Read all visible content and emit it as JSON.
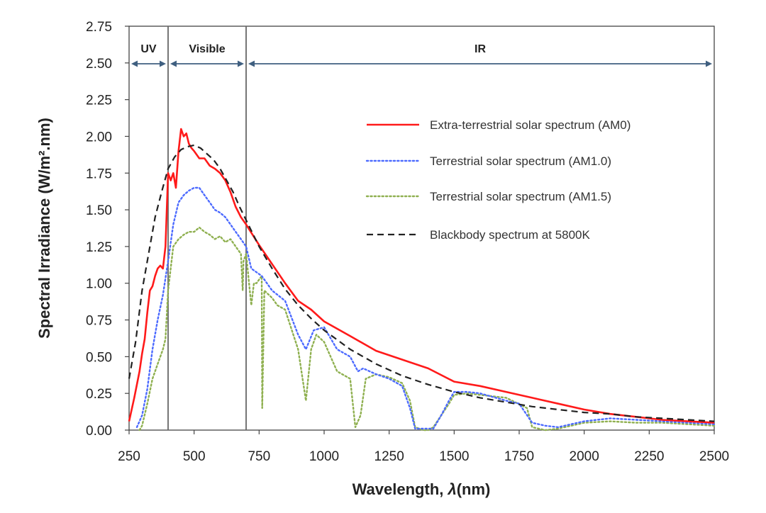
{
  "chart_data": {
    "type": "line",
    "title": "",
    "xlabel": "Wavelength, ",
    "xlabel_symbol": "λ",
    "xlabel_unit": "(nm)",
    "ylabel": "Spectral Irradiance (W/m².nm)",
    "xlim": [
      250,
      2500
    ],
    "ylim": [
      0,
      2.75
    ],
    "xticks": [
      250,
      500,
      750,
      1000,
      1250,
      1500,
      1750,
      2000,
      2250,
      2500
    ],
    "yticks": [
      "0.00",
      "0.25",
      "0.50",
      "0.75",
      "1.00",
      "1.25",
      "1.50",
      "1.75",
      "2.00",
      "2.25",
      "2.50",
      "2.75"
    ],
    "grid": false,
    "legend_position": "upper-right",
    "regions": [
      {
        "label": "UV",
        "start": 250,
        "end": 400
      },
      {
        "label": "Visible",
        "start": 400,
        "end": 700
      },
      {
        "label": "IR",
        "start": 700,
        "end": 2500
      }
    ],
    "series": [
      {
        "name": "Extra-terrestrial solar spectrum (AM0)",
        "color": "#ff1a1a",
        "style": "solid",
        "x": [
          250,
          270,
          290,
          300,
          310,
          320,
          330,
          340,
          350,
          360,
          370,
          380,
          390,
          400,
          410,
          420,
          430,
          440,
          450,
          460,
          470,
          480,
          490,
          500,
          520,
          540,
          560,
          580,
          600,
          620,
          640,
          660,
          680,
          700,
          750,
          800,
          850,
          900,
          950,
          1000,
          1100,
          1200,
          1300,
          1400,
          1500,
          1600,
          1700,
          1800,
          1900,
          2000,
          2100,
          2200,
          2300,
          2400,
          2500
        ],
        "y": [
          0.06,
          0.22,
          0.4,
          0.52,
          0.62,
          0.8,
          0.95,
          0.98,
          1.05,
          1.1,
          1.12,
          1.1,
          1.25,
          1.75,
          1.7,
          1.75,
          1.65,
          1.9,
          2.05,
          2.0,
          2.02,
          1.95,
          1.92,
          1.9,
          1.85,
          1.85,
          1.8,
          1.78,
          1.75,
          1.7,
          1.62,
          1.52,
          1.45,
          1.4,
          1.26,
          1.13,
          1.0,
          0.88,
          0.82,
          0.74,
          0.64,
          0.54,
          0.48,
          0.42,
          0.33,
          0.3,
          0.26,
          0.22,
          0.18,
          0.14,
          0.11,
          0.09,
          0.07,
          0.06,
          0.05
        ]
      },
      {
        "name": "Terrestrial solar spectrum (AM1.0)",
        "color": "#4d6bff",
        "style": "dotted",
        "x": [
          280,
          300,
          320,
          340,
          360,
          380,
          400,
          420,
          440,
          460,
          480,
          500,
          520,
          540,
          560,
          580,
          600,
          620,
          640,
          660,
          680,
          700,
          720,
          760,
          800,
          850,
          900,
          930,
          960,
          1000,
          1050,
          1100,
          1130,
          1150,
          1200,
          1250,
          1300,
          1330,
          1350,
          1380,
          1420,
          1450,
          1480,
          1500,
          1550,
          1600,
          1700,
          1750,
          1800,
          1850,
          1900,
          1950,
          2000,
          2100,
          2200,
          2300,
          2400,
          2500
        ],
        "y": [
          0.02,
          0.1,
          0.28,
          0.55,
          0.75,
          0.92,
          1.15,
          1.4,
          1.55,
          1.6,
          1.63,
          1.65,
          1.65,
          1.6,
          1.55,
          1.5,
          1.48,
          1.45,
          1.4,
          1.35,
          1.3,
          1.25,
          1.1,
          1.05,
          0.95,
          0.88,
          0.65,
          0.55,
          0.68,
          0.7,
          0.55,
          0.5,
          0.4,
          0.42,
          0.38,
          0.35,
          0.3,
          0.15,
          0.01,
          0.01,
          0.01,
          0.1,
          0.2,
          0.26,
          0.26,
          0.25,
          0.2,
          0.18,
          0.05,
          0.03,
          0.02,
          0.04,
          0.06,
          0.08,
          0.07,
          0.06,
          0.05,
          0.04
        ]
      },
      {
        "name": "Terrestrial solar spectrum (AM1.5)",
        "color": "#8fb050",
        "style": "dotted",
        "x": [
          290,
          300,
          320,
          340,
          360,
          380,
          390,
          400,
          420,
          440,
          460,
          480,
          500,
          520,
          540,
          560,
          580,
          600,
          620,
          640,
          660,
          680,
          687,
          690,
          700,
          720,
          730,
          740,
          760,
          762,
          770,
          800,
          820,
          850,
          900,
          930,
          950,
          970,
          1000,
          1050,
          1100,
          1120,
          1140,
          1160,
          1200,
          1250,
          1300,
          1330,
          1350,
          1380,
          1400,
          1420,
          1450,
          1480,
          1500,
          1550,
          1600,
          1700,
          1780,
          1800,
          1850,
          1900,
          1950,
          2000,
          2100,
          2200,
          2300,
          2400,
          2500
        ],
        "y": [
          0.0,
          0.03,
          0.18,
          0.35,
          0.45,
          0.55,
          0.62,
          0.95,
          1.25,
          1.3,
          1.33,
          1.35,
          1.35,
          1.38,
          1.35,
          1.33,
          1.3,
          1.32,
          1.28,
          1.3,
          1.25,
          1.2,
          0.95,
          1.15,
          1.2,
          0.85,
          1.0,
          1.0,
          1.05,
          0.15,
          0.95,
          0.9,
          0.85,
          0.82,
          0.55,
          0.2,
          0.55,
          0.65,
          0.6,
          0.4,
          0.35,
          0.02,
          0.1,
          0.35,
          0.38,
          0.36,
          0.32,
          0.2,
          0.02,
          0.0,
          0.0,
          0.02,
          0.1,
          0.18,
          0.24,
          0.25,
          0.24,
          0.22,
          0.15,
          0.02,
          0.0,
          0.01,
          0.03,
          0.05,
          0.06,
          0.05,
          0.05,
          0.04,
          0.03
        ]
      },
      {
        "name": "Blackbody spectrum at 5800K",
        "color": "#222222",
        "style": "dashed",
        "x": [
          250,
          275,
          300,
          325,
          350,
          375,
          400,
          425,
          450,
          475,
          500,
          525,
          550,
          575,
          600,
          625,
          650,
          675,
          700,
          750,
          800,
          850,
          900,
          950,
          1000,
          1100,
          1200,
          1300,
          1400,
          1500,
          1600,
          1700,
          1800,
          1900,
          2000,
          2100,
          2200,
          2300,
          2400,
          2500
        ],
        "y": [
          0.35,
          0.6,
          0.95,
          1.2,
          1.45,
          1.62,
          1.78,
          1.86,
          1.91,
          1.93,
          1.94,
          1.92,
          1.88,
          1.84,
          1.78,
          1.7,
          1.62,
          1.52,
          1.43,
          1.25,
          1.1,
          0.96,
          0.85,
          0.76,
          0.68,
          0.55,
          0.45,
          0.37,
          0.31,
          0.26,
          0.22,
          0.19,
          0.16,
          0.14,
          0.12,
          0.11,
          0.09,
          0.08,
          0.07,
          0.06
        ]
      }
    ]
  }
}
